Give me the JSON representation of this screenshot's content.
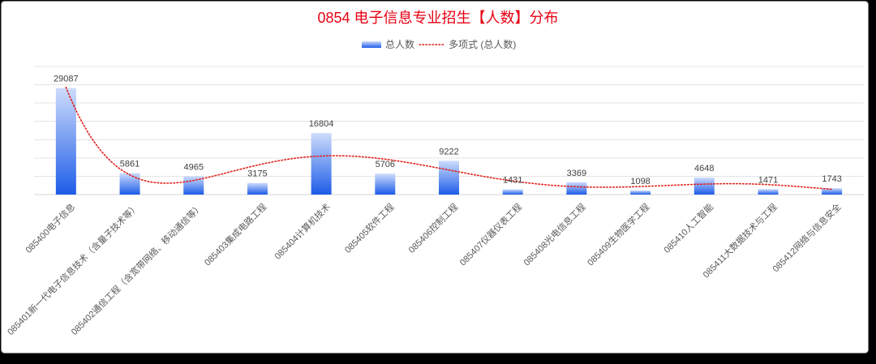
{
  "chart_data": {
    "type": "bar",
    "title": "0854 电子信息专业招生【人数】分布",
    "categories": [
      "085400电子信息",
      "085401新一代电子信息技术（含量子技术等）",
      "085402通信工程（含宽带网络、移动通信等）",
      "085403集成电路工程",
      "085404计算机技术",
      "085405软件工程",
      "085406控制工程",
      "085407仪器仪表工程",
      "085408光电信息工程",
      "085409生物医学工程",
      "085410人工智能",
      "085411大数据技术与工程",
      "085412网络与信息安全"
    ],
    "series": [
      {
        "name": "总人数",
        "values": [
          29087,
          5861,
          4965,
          3175,
          16804,
          5706,
          9222,
          1431,
          3369,
          1098,
          4648,
          1471,
          1743
        ]
      }
    ],
    "trendline": {
      "name": "多项式 (总人数)"
    },
    "ylim": [
      0,
      35000
    ],
    "y_grid_step": 5000,
    "grid": true,
    "legend": "top",
    "colors": {
      "title": "#e60012",
      "bar_light": "#cddcfc",
      "bar_dark": "#1d5ce8",
      "trendline": "#e3201b"
    }
  }
}
